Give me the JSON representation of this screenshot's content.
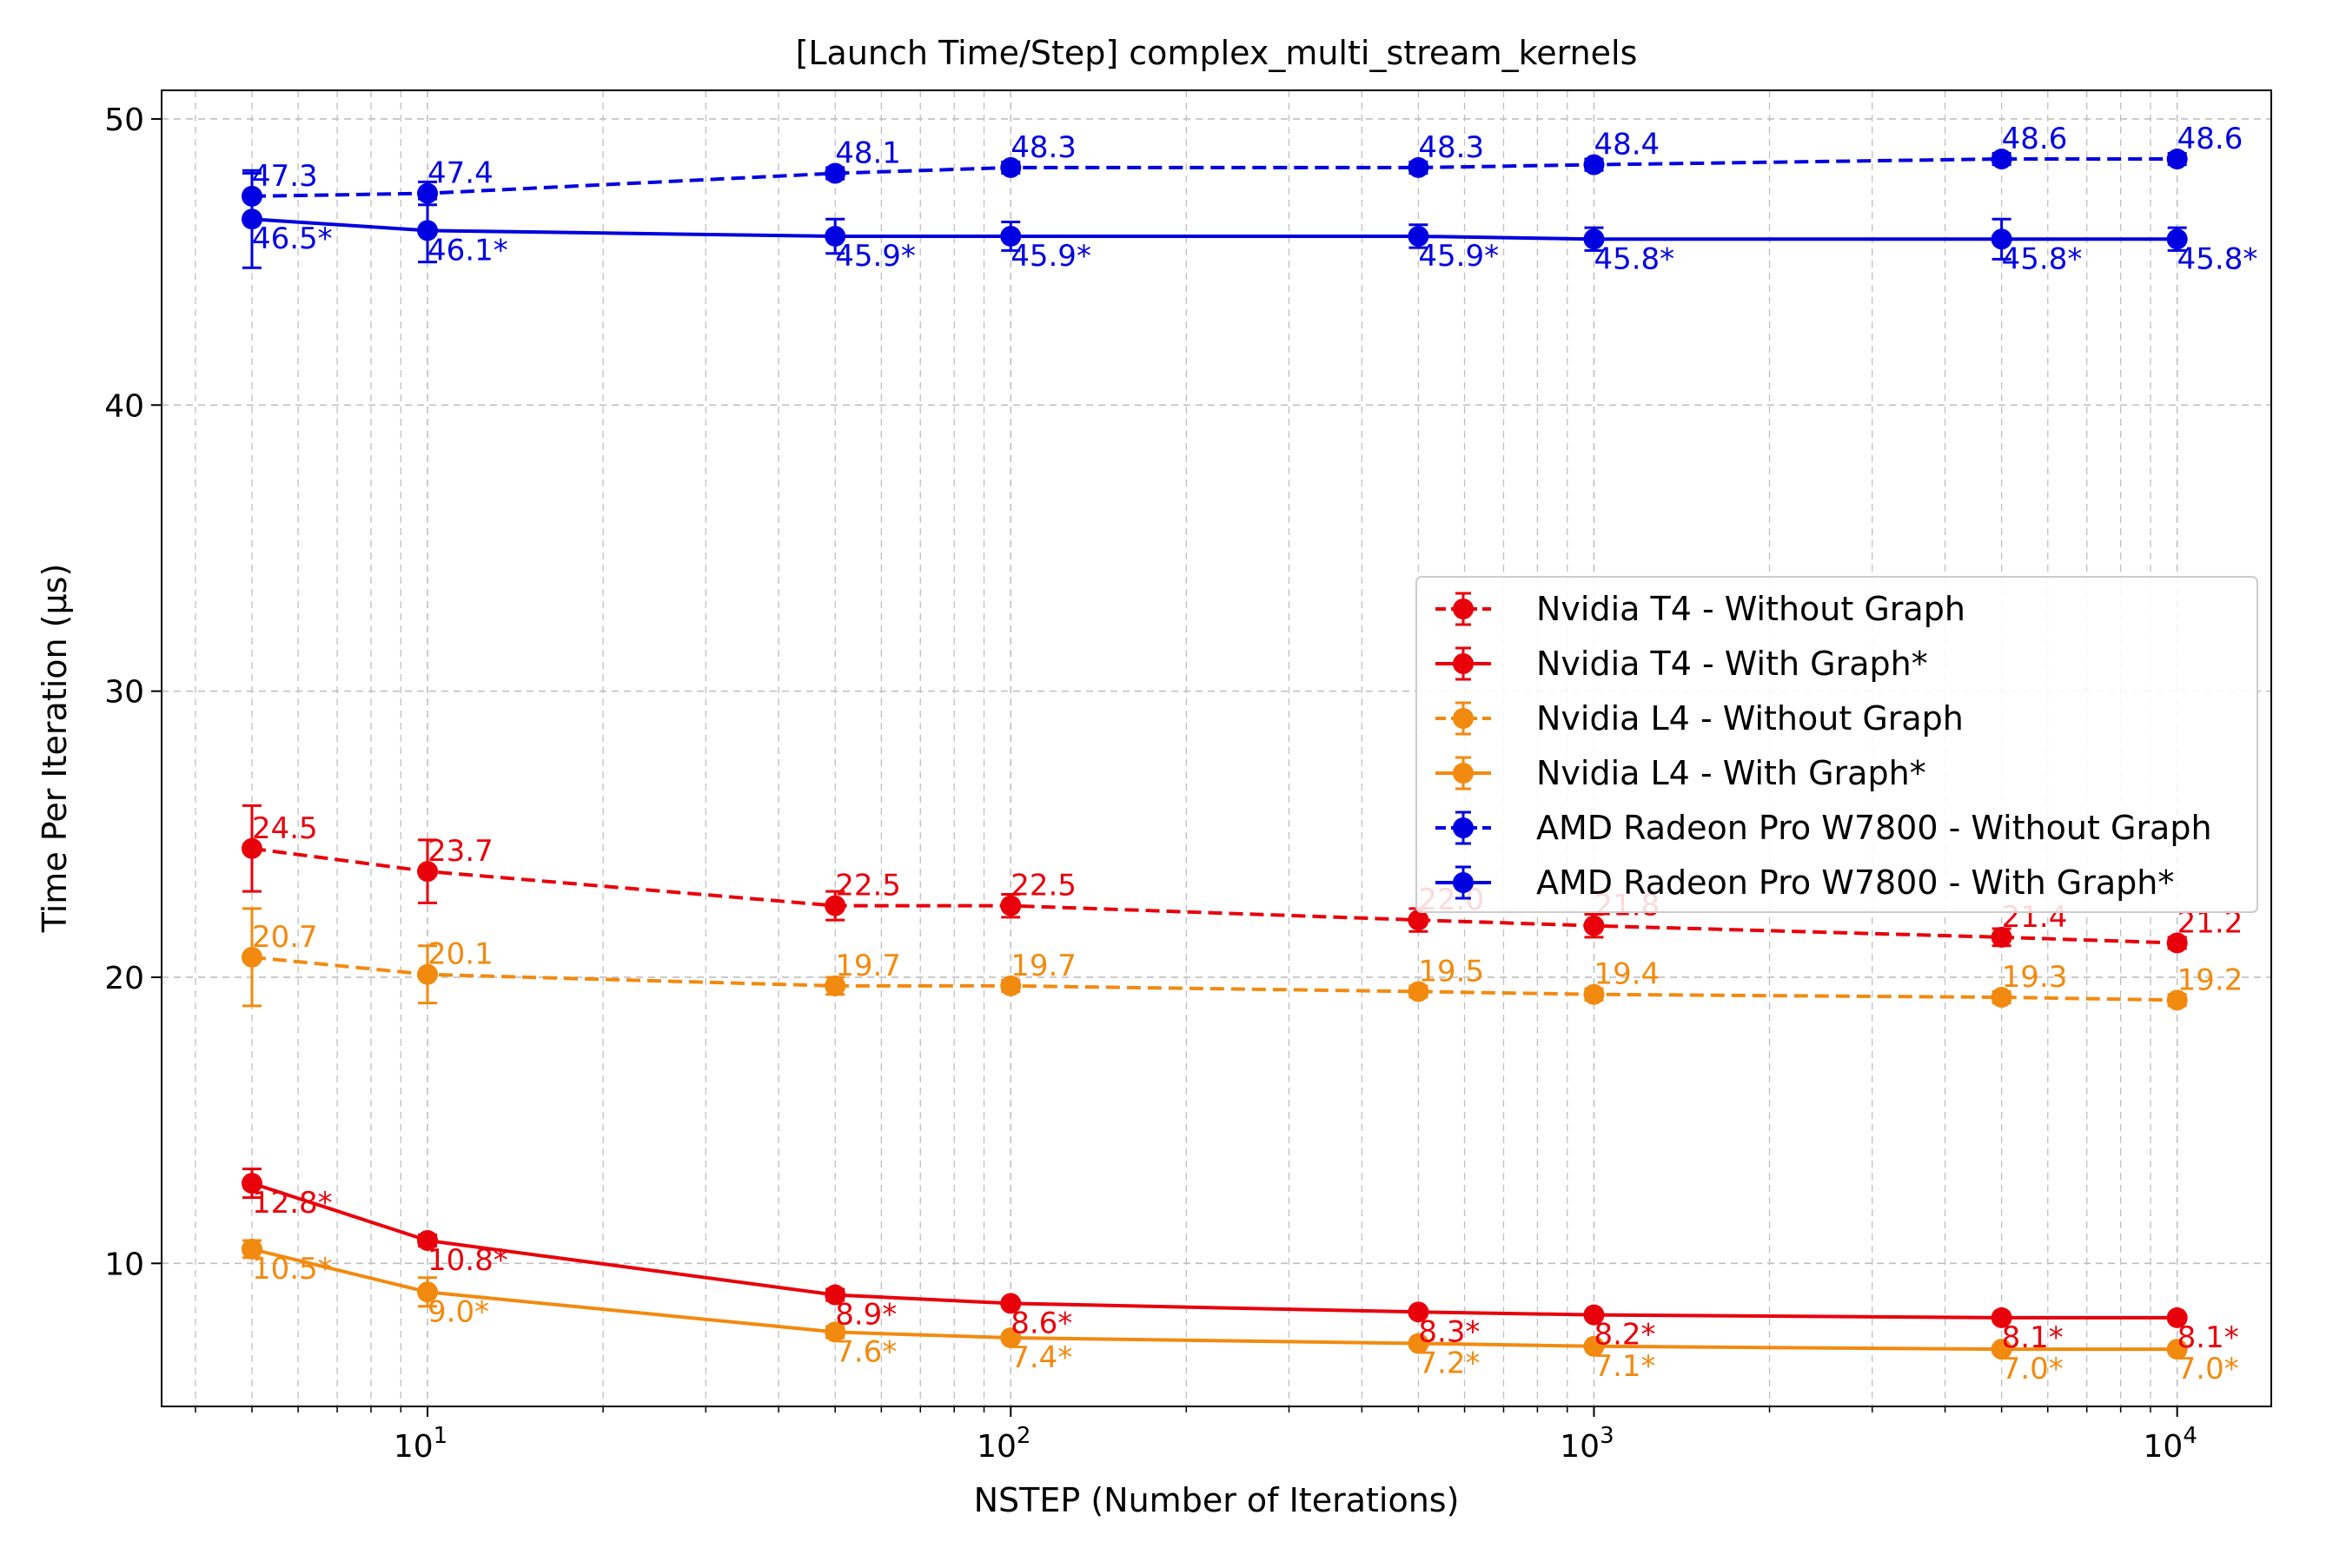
{
  "chart_data": {
    "type": "line",
    "title": "[Launch Time/Step] complex_multi_stream_kernels",
    "xlabel": "NSTEP (Number of Iterations)",
    "ylabel": "Time Per Iteration (µs)",
    "x_scale": "log",
    "xlim": [
      3.5,
      14500
    ],
    "ylim": [
      5,
      51
    ],
    "grid": true,
    "legend_position": "center-right",
    "x": [
      5,
      10,
      50,
      100,
      500,
      1000,
      5000,
      10000
    ],
    "x_ticks": [
      {
        "base": "10",
        "exp": "1"
      },
      {
        "base": "10",
        "exp": "2"
      },
      {
        "base": "10",
        "exp": "3"
      },
      {
        "base": "10",
        "exp": "4"
      }
    ],
    "y_ticks": [
      "10",
      "20",
      "30",
      "40",
      "50"
    ],
    "series": [
      {
        "name": "Nvidia T4 - Without Graph",
        "color": "#e8000b",
        "dashed": true,
        "values": [
          24.5,
          23.7,
          22.5,
          22.5,
          22.0,
          21.8,
          21.4,
          21.2
        ],
        "errors": [
          1.5,
          1.1,
          0.5,
          0.4,
          0.4,
          0.4,
          0.3,
          0.2
        ],
        "labels": [
          "24.5",
          "23.7",
          "22.5",
          "22.5",
          "22.0",
          "21.8",
          "21.4",
          "21.2"
        ]
      },
      {
        "name": "Nvidia T4 - With Graph*",
        "color": "#e8000b",
        "dashed": false,
        "values": [
          12.8,
          10.8,
          8.9,
          8.6,
          8.3,
          8.2,
          8.1,
          8.1
        ],
        "errors": [
          0.5,
          0.2,
          0.2,
          0.1,
          0.1,
          0.1,
          0.1,
          0.1
        ],
        "labels": [
          "12.8*",
          "10.8*",
          "8.9*",
          "8.6*",
          "8.3*",
          "8.2*",
          "8.1*",
          "8.1*"
        ]
      },
      {
        "name": "Nvidia L4 - Without Graph",
        "color": "#f28a0f",
        "dashed": true,
        "values": [
          20.7,
          20.1,
          19.7,
          19.7,
          19.5,
          19.4,
          19.3,
          19.2
        ],
        "errors": [
          1.7,
          1.0,
          0.3,
          0.2,
          0.2,
          0.2,
          0.2,
          0.2
        ],
        "labels": [
          "20.7",
          "20.1",
          "19.7",
          "19.7",
          "19.5",
          "19.4",
          "19.3",
          "19.2"
        ]
      },
      {
        "name": "Nvidia L4 - With Graph*",
        "color": "#f28a0f",
        "dashed": false,
        "values": [
          10.5,
          9.0,
          7.6,
          7.4,
          7.2,
          7.1,
          7.0,
          7.0
        ],
        "errors": [
          0.3,
          0.5,
          0.2,
          0.1,
          0.1,
          0.1,
          0.1,
          0.1
        ],
        "labels": [
          "10.5*",
          "9.0*",
          "7.6*",
          "7.4*",
          "7.2*",
          "7.1*",
          "7.0*",
          "7.0*"
        ]
      },
      {
        "name": "AMD Radeon Pro W7800 - Without Graph",
        "color": "#0000e0",
        "dashed": true,
        "values": [
          47.3,
          47.4,
          48.1,
          48.3,
          48.3,
          48.4,
          48.6,
          48.6
        ],
        "errors": [
          0.8,
          0.4,
          0.2,
          0.2,
          0.2,
          0.2,
          0.2,
          0.2
        ],
        "labels": [
          "47.3",
          "47.4",
          "48.1",
          "48.3",
          "48.3",
          "48.4",
          "48.6",
          "48.6"
        ]
      },
      {
        "name": "AMD Radeon Pro W7800 - With Graph*",
        "color": "#0000e0",
        "dashed": false,
        "values": [
          46.5,
          46.1,
          45.9,
          45.9,
          45.9,
          45.8,
          45.8,
          45.8
        ],
        "errors": [
          1.7,
          1.1,
          0.6,
          0.5,
          0.4,
          0.4,
          0.7,
          0.4
        ],
        "labels": [
          "46.5*",
          "46.1*",
          "45.9*",
          "45.9*",
          "45.9*",
          "45.8*",
          "45.8*",
          "45.8*"
        ]
      }
    ]
  }
}
